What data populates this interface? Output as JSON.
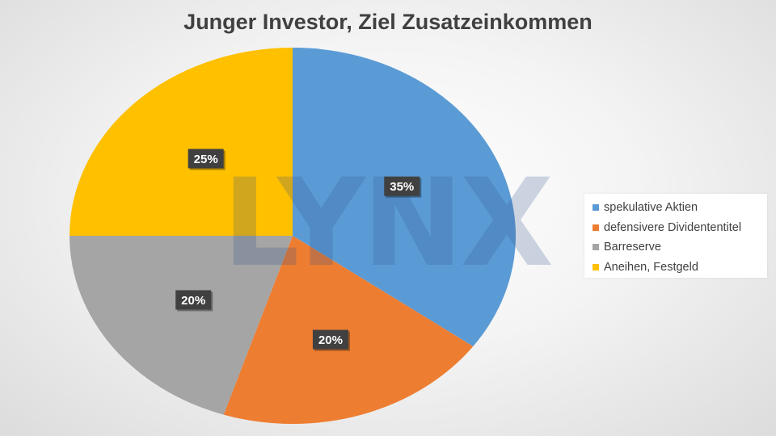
{
  "chart_data": {
    "type": "pie",
    "title": "Junger Investor, Ziel Zusatzeinkommen",
    "categories": [
      "spekulative Aktien",
      "defensivere Dividententitel",
      "Barreserve",
      "Aneihen, Festgeld"
    ],
    "values": [
      35,
      20,
      20,
      25
    ],
    "labels": [
      "35%",
      "20%",
      "20%",
      "25%"
    ],
    "colors": [
      "#5b9bd5",
      "#ed7d31",
      "#a5a5a5",
      "#ffc000"
    ],
    "start_angle_deg": 0,
    "direction": "clockwise",
    "legend_position": "right"
  },
  "watermark": {
    "text": "LYNX",
    "color": "#2f4f8a"
  }
}
